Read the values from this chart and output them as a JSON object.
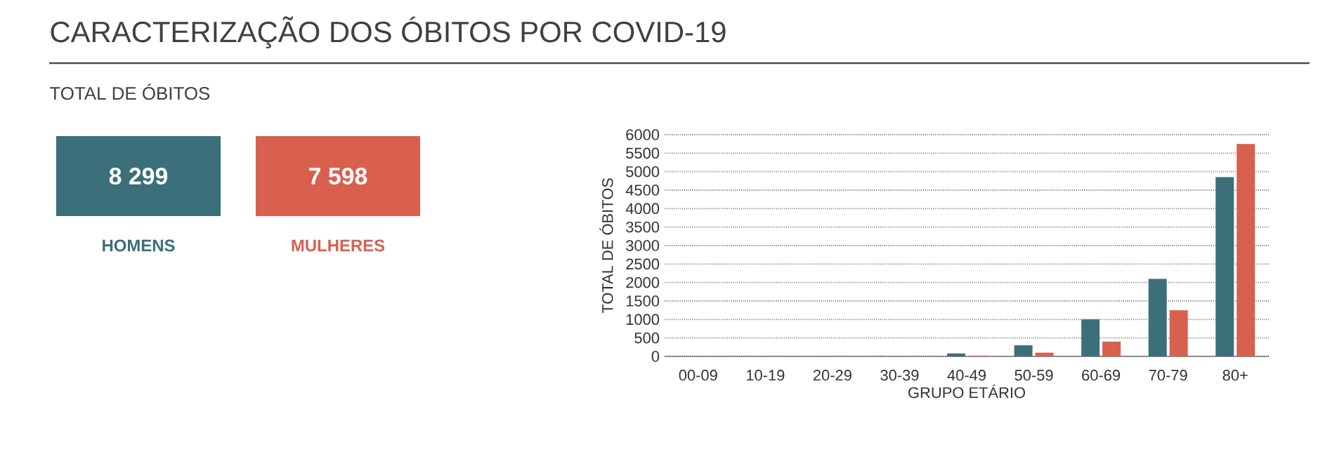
{
  "chart_data": [
    {
      "type": "other",
      "title": "CARACTERIZAÇÃO DOS ÓBITOS POR COVID-19",
      "subtitle": "TOTAL DE ÓBITOS",
      "categories": [
        "HOMENS",
        "MULHERES"
      ],
      "value_labels": [
        "8 299",
        "7 598"
      ],
      "colors": [
        "#3b6f7a",
        "#d9604f"
      ]
    },
    {
      "type": "bar",
      "categories": [
        "00-09",
        "10-19",
        "20-29",
        "30-39",
        "40-49",
        "50-59",
        "60-69",
        "70-79",
        "80+"
      ],
      "series": [
        {
          "color": "#3b6f7a",
          "values": [
            0,
            0,
            0,
            0,
            80,
            300,
            1000,
            2100,
            4850
          ]
        },
        {
          "color": "#d9604f",
          "values": [
            0,
            0,
            0,
            0,
            20,
            100,
            400,
            1250,
            5750
          ]
        }
      ],
      "xlabel": "GRUPO ETÁRIO",
      "ylabel": "TOTAL DE ÓBITOS",
      "ylim": [
        0,
        6000
      ],
      "yticks": [
        0,
        500,
        1000,
        1500,
        2000,
        2500,
        3000,
        3500,
        4000,
        4500,
        5000,
        5500,
        6000
      ],
      "grid": "y"
    }
  ]
}
